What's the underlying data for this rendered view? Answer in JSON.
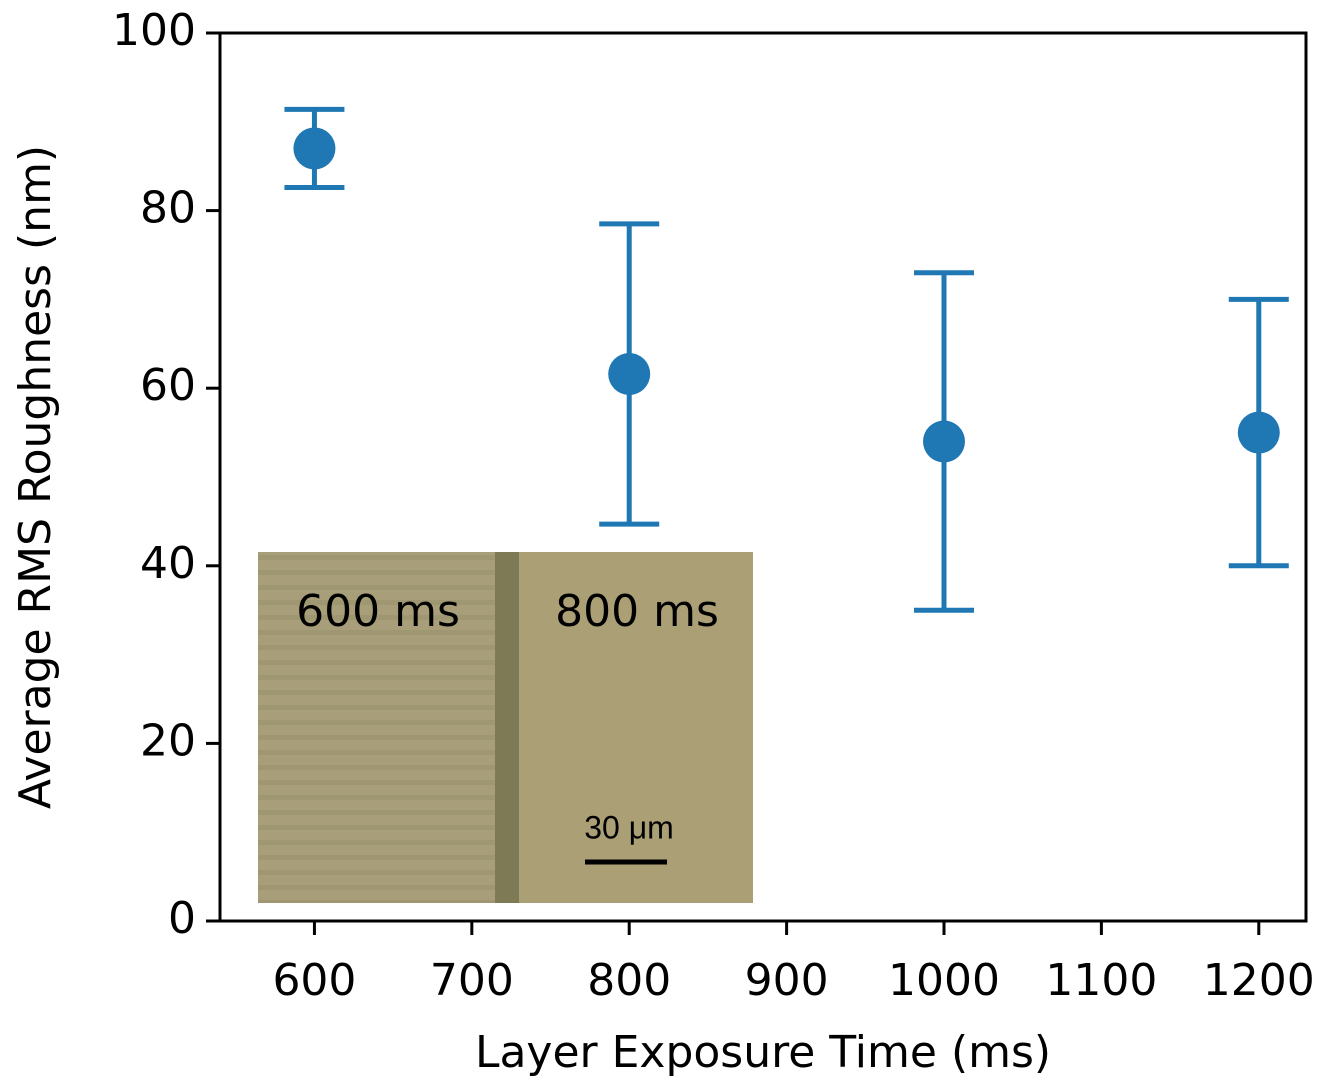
{
  "chart_data": {
    "type": "errorbar",
    "xlabel": "Layer Exposure Time (ms)",
    "ylabel": "Average RMS Roughness (nm)",
    "x": [
      600,
      800,
      1000,
      1200
    ],
    "series": [
      {
        "color": "#1f77b4",
        "values": [
          87,
          61.6,
          54,
          55
        ],
        "errors": [
          4.4,
          16.9,
          19,
          15
        ]
      }
    ],
    "xlim": [
      540,
      1230
    ],
    "ylim": [
      0,
      100
    ],
    "xticks": [
      600,
      700,
      800,
      900,
      1000,
      1100,
      1200
    ],
    "yticks": [
      0,
      20,
      40,
      60,
      80,
      100
    ],
    "grid": false,
    "inset": {
      "labels": [
        "600 ms",
        "800 ms"
      ],
      "scale_bar": "30 μm"
    }
  }
}
